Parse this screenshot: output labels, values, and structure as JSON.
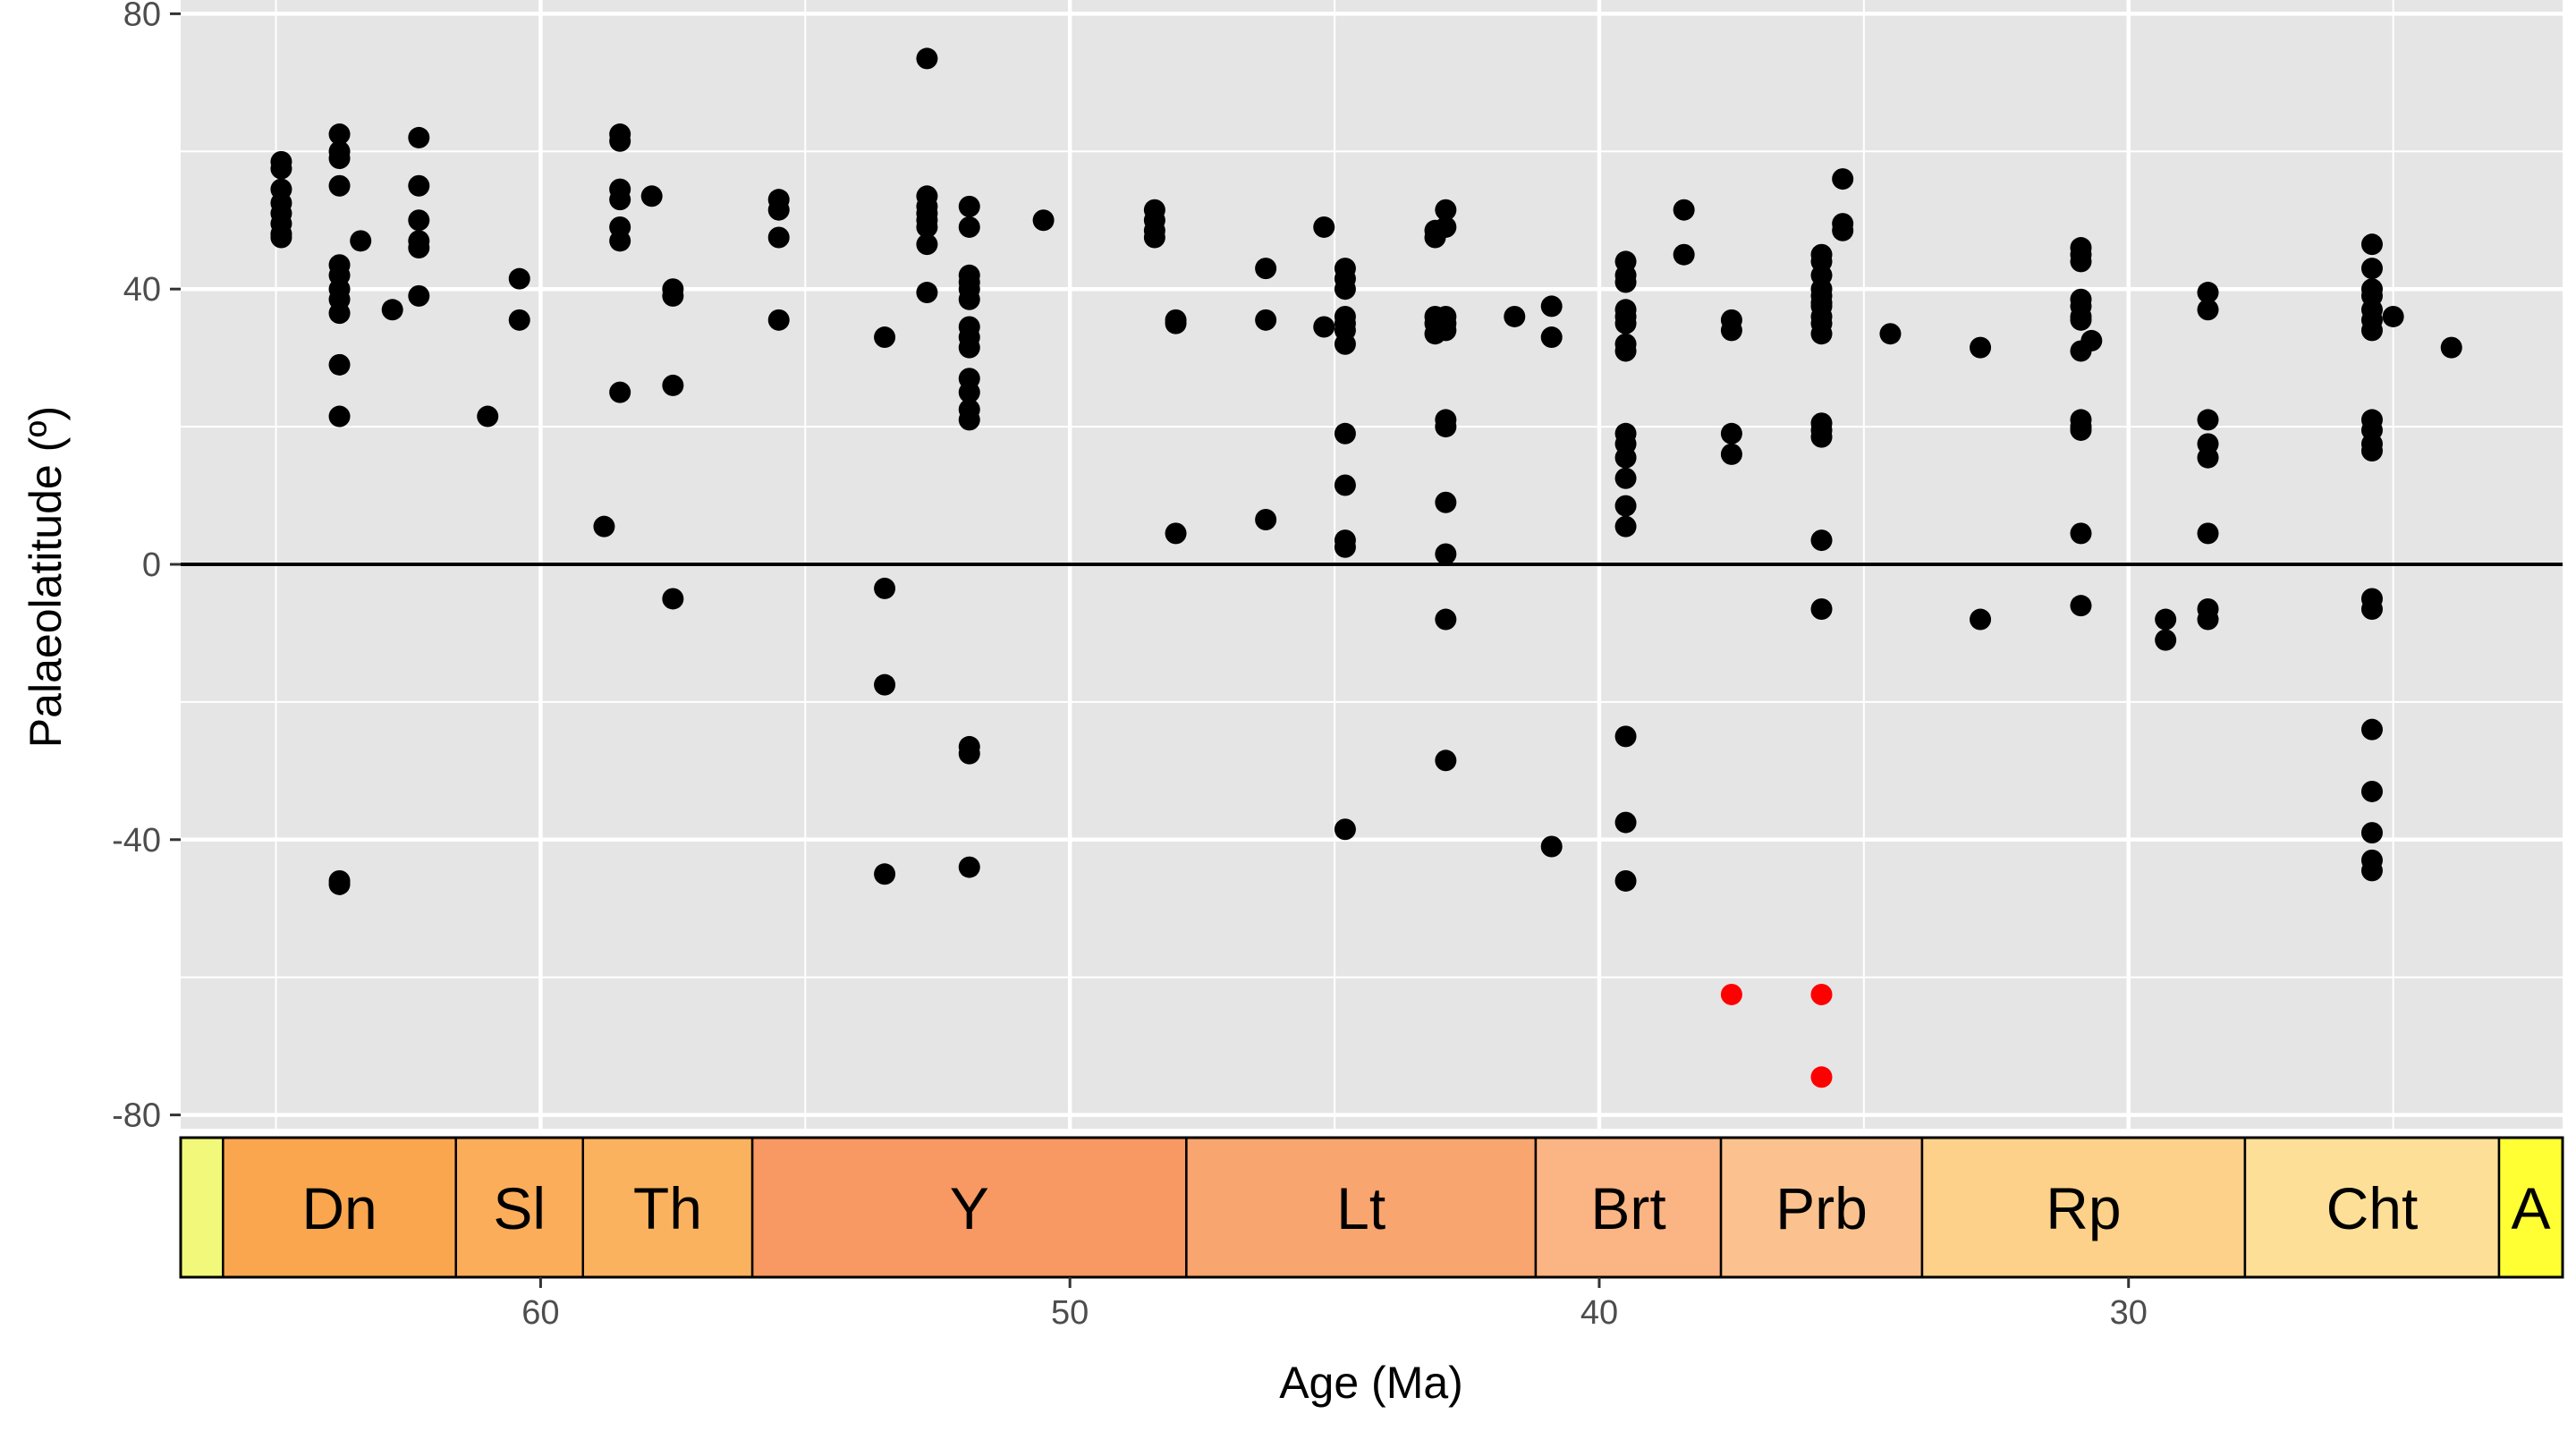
{
  "chart_data": {
    "type": "scatter",
    "title": "",
    "xlabel": "Age (Ma)",
    "ylabel": "Palaeolatitude (º)",
    "xlim": [
      66.8,
      21.8
    ],
    "x_reversed": true,
    "ylim": [
      -82,
      82
    ],
    "x_ticks": [
      "60",
      "50",
      "40",
      "30"
    ],
    "y_ticks": [
      "80",
      "40",
      "0",
      "-40",
      "-80"
    ],
    "x_tick_values": [
      60,
      50,
      40,
      30
    ],
    "y_tick_values": [
      80,
      40,
      0,
      -40,
      -80
    ],
    "reference_line_y": 0,
    "grid": true,
    "colors": {
      "panel": "#e5e5e5",
      "grid": "#ffffff",
      "point": "#000000",
      "highlight_point": "#ff0000"
    },
    "stages": [
      {
        "label": "",
        "start": 66.8,
        "end": 66.0,
        "color": "#f2f97a"
      },
      {
        "label": "Dn",
        "start": 66.0,
        "end": 61.6,
        "color": "#f9a64f"
      },
      {
        "label": "Sl",
        "start": 61.6,
        "end": 59.2,
        "color": "#fbad5a"
      },
      {
        "label": "Th",
        "start": 59.2,
        "end": 56.0,
        "color": "#fbb25f"
      },
      {
        "label": "Y",
        "start": 56.0,
        "end": 47.8,
        "color": "#f89862"
      },
      {
        "label": "Lt",
        "start": 47.8,
        "end": 41.2,
        "color": "#f9a56f"
      },
      {
        "label": "Brt",
        "start": 41.2,
        "end": 37.7,
        "color": "#fbb483"
      },
      {
        "label": "Prb",
        "start": 37.7,
        "end": 33.9,
        "color": "#fbc28f"
      },
      {
        "label": "Rp",
        "start": 33.9,
        "end": 27.8,
        "color": "#fdd189"
      },
      {
        "label": "Cht",
        "start": 27.8,
        "end": 23.0,
        "color": "#fedf98"
      },
      {
        "label": "A",
        "start": 23.0,
        "end": 21.8,
        "color": "#ffff33"
      }
    ],
    "series": [
      {
        "color": "#000000",
        "points": [
          [
            64.9,
            58.5
          ],
          [
            64.9,
            57.5
          ],
          [
            64.9,
            54.5
          ],
          [
            64.9,
            52.5
          ],
          [
            64.9,
            51
          ],
          [
            64.9,
            49.5
          ],
          [
            64.9,
            48
          ],
          [
            64.9,
            47.5
          ],
          [
            63.8,
            62.5
          ],
          [
            63.8,
            60
          ],
          [
            63.8,
            59
          ],
          [
            63.8,
            55
          ],
          [
            63.8,
            43.5
          ],
          [
            63.8,
            42
          ],
          [
            63.8,
            40
          ],
          [
            63.8,
            38.5
          ],
          [
            63.8,
            36.5
          ],
          [
            63.8,
            29
          ],
          [
            63.8,
            21.5
          ],
          [
            63.8,
            -46
          ],
          [
            63.8,
            -46.5
          ],
          [
            63.4,
            47
          ],
          [
            62.8,
            37
          ],
          [
            62.3,
            62
          ],
          [
            62.3,
            55
          ],
          [
            62.3,
            50
          ],
          [
            62.3,
            47
          ],
          [
            62.3,
            46
          ],
          [
            62.3,
            39
          ],
          [
            60.4,
            41.5
          ],
          [
            60.4,
            35.5
          ],
          [
            61.0,
            21.5
          ],
          [
            58.8,
            5.5
          ],
          [
            58.5,
            62.5
          ],
          [
            58.5,
            61.5
          ],
          [
            58.5,
            54.5
          ],
          [
            58.5,
            53
          ],
          [
            58.5,
            49
          ],
          [
            58.5,
            47
          ],
          [
            58.5,
            25
          ],
          [
            57.9,
            53.5
          ],
          [
            57.5,
            40
          ],
          [
            57.5,
            39
          ],
          [
            57.5,
            26
          ],
          [
            57.5,
            -5
          ],
          [
            55.5,
            53
          ],
          [
            55.5,
            51.5
          ],
          [
            55.5,
            47.5
          ],
          [
            55.5,
            35.5
          ],
          [
            53.5,
            33
          ],
          [
            53.5,
            -3.5
          ],
          [
            53.5,
            -17.5
          ],
          [
            53.5,
            -45
          ],
          [
            52.7,
            73.5
          ],
          [
            52.7,
            53.5
          ],
          [
            52.7,
            52
          ],
          [
            52.7,
            51
          ],
          [
            52.7,
            50
          ],
          [
            52.7,
            49
          ],
          [
            52.7,
            46.5
          ],
          [
            52.7,
            39.5
          ],
          [
            51.9,
            52
          ],
          [
            51.9,
            49
          ],
          [
            51.9,
            42
          ],
          [
            51.9,
            41
          ],
          [
            51.9,
            40
          ],
          [
            51.9,
            38.5
          ],
          [
            51.9,
            34.5
          ],
          [
            51.9,
            33
          ],
          [
            51.9,
            31.5
          ],
          [
            51.9,
            27
          ],
          [
            51.9,
            25
          ],
          [
            51.9,
            22.5
          ],
          [
            51.9,
            21
          ],
          [
            51.9,
            -26.5
          ],
          [
            51.9,
            -27.5
          ],
          [
            51.9,
            -44
          ],
          [
            50.5,
            50
          ],
          [
            48.4,
            51.5
          ],
          [
            48.4,
            50
          ],
          [
            48.4,
            48.5
          ],
          [
            48.4,
            47.5
          ],
          [
            48.0,
            35.5
          ],
          [
            48.0,
            35
          ],
          [
            48.0,
            4.5
          ],
          [
            46.3,
            43
          ],
          [
            46.3,
            35.5
          ],
          [
            46.3,
            6.5
          ],
          [
            45.2,
            49
          ],
          [
            45.2,
            34.5
          ],
          [
            44.8,
            43
          ],
          [
            44.8,
            41.5
          ],
          [
            44.8,
            40
          ],
          [
            44.8,
            36
          ],
          [
            44.8,
            35
          ],
          [
            44.8,
            34
          ],
          [
            44.8,
            32
          ],
          [
            44.8,
            19
          ],
          [
            44.8,
            11.5
          ],
          [
            44.8,
            3.5
          ],
          [
            44.8,
            2.5
          ],
          [
            44.8,
            -38.5
          ],
          [
            43.1,
            48.5
          ],
          [
            43.1,
            47.5
          ],
          [
            43.1,
            36
          ],
          [
            43.1,
            35
          ],
          [
            43.1,
            33.5
          ],
          [
            42.9,
            51.5
          ],
          [
            42.9,
            49
          ],
          [
            42.9,
            36
          ],
          [
            42.9,
            35
          ],
          [
            42.9,
            34
          ],
          [
            42.9,
            21
          ],
          [
            42.9,
            20
          ],
          [
            42.9,
            9
          ],
          [
            42.9,
            1.5
          ],
          [
            42.9,
            -8
          ],
          [
            42.9,
            -28.5
          ],
          [
            41.6,
            36
          ],
          [
            40.9,
            37.5
          ],
          [
            40.9,
            33
          ],
          [
            40.9,
            -41
          ],
          [
            39.5,
            44
          ],
          [
            39.5,
            42
          ],
          [
            39.5,
            41
          ],
          [
            39.5,
            37
          ],
          [
            39.5,
            36
          ],
          [
            39.5,
            35
          ],
          [
            39.5,
            32
          ],
          [
            39.5,
            31
          ],
          [
            39.5,
            19
          ],
          [
            39.5,
            17.5
          ],
          [
            39.5,
            15.5
          ],
          [
            39.5,
            12.5
          ],
          [
            39.5,
            8.5
          ],
          [
            39.5,
            5.5
          ],
          [
            39.5,
            -25
          ],
          [
            39.5,
            -37.5
          ],
          [
            39.5,
            -46
          ],
          [
            38.4,
            51.5
          ],
          [
            38.4,
            45
          ],
          [
            37.5,
            35.5
          ],
          [
            37.5,
            34
          ],
          [
            37.5,
            19
          ],
          [
            37.5,
            16
          ],
          [
            35.8,
            45
          ],
          [
            35.8,
            44
          ],
          [
            35.8,
            42
          ],
          [
            35.8,
            40
          ],
          [
            35.8,
            39
          ],
          [
            35.8,
            38
          ],
          [
            35.8,
            37.5
          ],
          [
            35.8,
            36
          ],
          [
            35.8,
            35
          ],
          [
            35.8,
            33.5
          ],
          [
            35.8,
            20.5
          ],
          [
            35.8,
            19.5
          ],
          [
            35.8,
            18.5
          ],
          [
            35.8,
            3.5
          ],
          [
            35.8,
            -6.5
          ],
          [
            35.4,
            56
          ],
          [
            35.4,
            49.5
          ],
          [
            35.4,
            48.5
          ],
          [
            34.5,
            33.5
          ],
          [
            32.8,
            31.5
          ],
          [
            32.8,
            -8
          ],
          [
            30.9,
            46
          ],
          [
            30.9,
            45
          ],
          [
            30.9,
            44
          ],
          [
            30.9,
            38.5
          ],
          [
            30.9,
            37.5
          ],
          [
            30.9,
            36
          ],
          [
            30.9,
            35.5
          ],
          [
            30.9,
            31
          ],
          [
            30.9,
            21
          ],
          [
            30.9,
            20
          ],
          [
            30.9,
            19.5
          ],
          [
            30.9,
            4.5
          ],
          [
            30.9,
            -6
          ],
          [
            30.7,
            32.5
          ],
          [
            29.3,
            -8
          ],
          [
            29.3,
            -11
          ],
          [
            28.5,
            39.5
          ],
          [
            28.5,
            37
          ],
          [
            28.5,
            21
          ],
          [
            28.5,
            17.5
          ],
          [
            28.5,
            15.5
          ],
          [
            28.5,
            4.5
          ],
          [
            28.5,
            -6.5
          ],
          [
            28.5,
            -8
          ],
          [
            25.4,
            46.5
          ],
          [
            25.4,
            43
          ],
          [
            25.4,
            40
          ],
          [
            25.4,
            39
          ],
          [
            25.4,
            37
          ],
          [
            25.4,
            35.5
          ],
          [
            25.4,
            34
          ],
          [
            25.4,
            21
          ],
          [
            25.4,
            19.5
          ],
          [
            25.4,
            17.5
          ],
          [
            25.4,
            16.5
          ],
          [
            25.4,
            -5
          ],
          [
            25.4,
            -6.5
          ],
          [
            25.4,
            -24
          ],
          [
            25.4,
            -33
          ],
          [
            25.4,
            -39
          ],
          [
            25.4,
            -43
          ],
          [
            25.4,
            -44.5
          ],
          [
            25.0,
            36
          ],
          [
            23.9,
            31.5
          ]
        ]
      },
      {
        "color": "#ff0000",
        "points": [
          [
            37.5,
            -62.5
          ],
          [
            35.8,
            -62.5
          ],
          [
            35.8,
            -74.5
          ]
        ]
      }
    ]
  }
}
